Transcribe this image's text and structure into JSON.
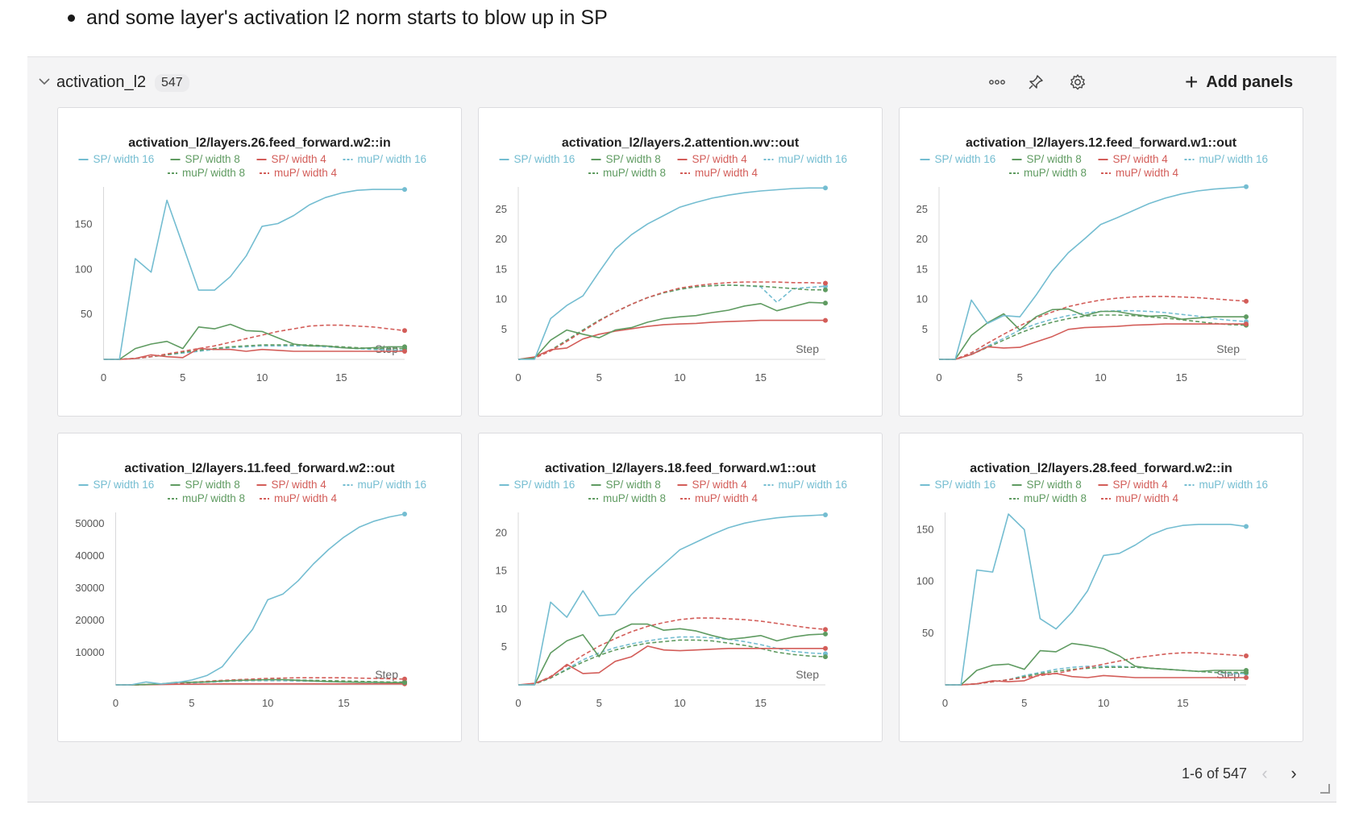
{
  "note": {
    "text": "and some layer's activation l2 norm starts to blow up in SP"
  },
  "section": {
    "title": "activation_l2",
    "count": "547",
    "icons": {
      "more": "more-dots-icon",
      "pin": "pin-icon",
      "settings": "gear-icon",
      "add": "plus-icon"
    },
    "add_panels_label": "Add panels",
    "pagination": {
      "label": "1-6 of 547",
      "prev": "chevron-left-icon",
      "next": "chevron-right-icon"
    }
  },
  "colors": {
    "sp16": "#74bdd1",
    "sp8": "#5f9b61",
    "sp4": "#d35d59",
    "mup16": "#74bdd1",
    "mup8": "#5f9b61",
    "mup4": "#d35d59"
  },
  "legend": [
    {
      "key": "sp16",
      "label": "SP/ width 16",
      "dash": false
    },
    {
      "key": "sp8",
      "label": "SP/ width 8",
      "dash": false
    },
    {
      "key": "sp4",
      "label": "SP/ width 4",
      "dash": false
    },
    {
      "key": "mup16",
      "label": "muP/ width 16",
      "dash": true
    },
    {
      "key": "mup8",
      "label": "muP/ width 8",
      "dash": true
    },
    {
      "key": "mup4",
      "label": "muP/ width 4",
      "dash": true
    }
  ],
  "chart_data": [
    {
      "type": "line",
      "title": "activation_l2/layers.26.feed_forward.w2::in",
      "xlabel": "Step",
      "xlim": [
        0,
        19
      ],
      "xticks": [
        0,
        5,
        10,
        15
      ],
      "ylim": [
        0,
        190
      ],
      "yticks": [
        50,
        100,
        150
      ],
      "series": [
        {
          "key": "sp16",
          "name": "SP/ width 16",
          "values": [
            0,
            0,
            112,
            97,
            177,
            127,
            77,
            77,
            92,
            115,
            148,
            151,
            160,
            172,
            180,
            185,
            188,
            189,
            189,
            189
          ]
        },
        {
          "key": "sp8",
          "name": "SP/ width 8",
          "values": [
            0,
            0,
            12,
            17,
            20,
            12,
            36,
            34,
            39,
            32,
            31,
            24,
            17,
            15,
            15,
            13,
            12,
            13,
            14,
            14
          ]
        },
        {
          "key": "sp4",
          "name": "SP/ width 4",
          "values": [
            0,
            0,
            1,
            5,
            3,
            2,
            12,
            11,
            11,
            9,
            11,
            10,
            9,
            9,
            9,
            9,
            9,
            9,
            9,
            9
          ]
        },
        {
          "key": "mup16",
          "name": "muP/ width 16",
          "values": [
            0,
            0,
            1,
            3,
            5,
            7,
            9,
            11,
            13,
            14,
            15,
            15,
            15,
            15,
            14,
            13,
            12,
            11,
            10,
            10
          ]
        },
        {
          "key": "mup8",
          "name": "muP/ width 8",
          "values": [
            0,
            0,
            1,
            3,
            5,
            8,
            10,
            12,
            14,
            15,
            16,
            16,
            16,
            16,
            15,
            14,
            13,
            12,
            12,
            12
          ]
        },
        {
          "key": "mup4",
          "name": "muP/ width 4",
          "values": [
            0,
            0,
            1,
            3,
            6,
            9,
            12,
            15,
            19,
            23,
            27,
            31,
            34,
            37,
            38,
            38,
            37,
            36,
            34,
            32
          ]
        }
      ]
    },
    {
      "type": "line",
      "title": "activation_l2/layers.2.attention.wv::out",
      "xlabel": "Step",
      "xlim": [
        0,
        19
      ],
      "xticks": [
        0,
        5,
        10,
        15
      ],
      "ylim": [
        0,
        28.5
      ],
      "yticks": [
        5,
        10,
        15,
        20,
        25
      ],
      "series": [
        {
          "key": "sp16",
          "name": "SP/ width 16",
          "values": [
            0,
            0,
            6.8,
            9,
            10.6,
            14.6,
            18.4,
            20.8,
            22.6,
            24,
            25.4,
            26.2,
            26.9,
            27.4,
            27.8,
            28.1,
            28.3,
            28.5,
            28.6,
            28.6
          ]
        },
        {
          "key": "sp8",
          "name": "SP/ width 8",
          "values": [
            0,
            0.2,
            3.2,
            4.9,
            4.2,
            3.6,
            4.9,
            5.3,
            6.2,
            6.8,
            7.1,
            7.3,
            7.8,
            8.2,
            8.9,
            9.3,
            8.1,
            8.8,
            9.5,
            9.4
          ]
        },
        {
          "key": "sp4",
          "name": "SP/ width 4",
          "values": [
            0,
            0.4,
            1.6,
            1.9,
            3.4,
            4.2,
            4.7,
            5.1,
            5.5,
            5.8,
            5.9,
            6,
            6.2,
            6.3,
            6.4,
            6.5,
            6.5,
            6.5,
            6.5,
            6.5
          ]
        },
        {
          "key": "mup16",
          "name": "muP/ width 16",
          "values": [
            0,
            0.2,
            1.5,
            3.2,
            4.9,
            6.5,
            7.9,
            9.2,
            10.3,
            11.1,
            11.7,
            12.1,
            12.3,
            12.4,
            12.3,
            12.1,
            9.5,
            11.8,
            12,
            12.2
          ]
        },
        {
          "key": "mup8",
          "name": "muP/ width 8",
          "values": [
            0,
            0.2,
            1.5,
            3.2,
            4.9,
            6.5,
            7.9,
            9.2,
            10.3,
            11.1,
            11.7,
            12.1,
            12.3,
            12.4,
            12.3,
            12.2,
            12,
            11.8,
            11.6,
            11.6
          ]
        },
        {
          "key": "mup4",
          "name": "muP/ width 4",
          "values": [
            0,
            0.2,
            1.4,
            3,
            4.7,
            6.4,
            7.9,
            9.2,
            10.3,
            11.2,
            11.9,
            12.3,
            12.6,
            12.8,
            12.9,
            12.9,
            12.9,
            12.8,
            12.8,
            12.7
          ]
        }
      ]
    },
    {
      "type": "line",
      "title": "activation_l2/layers.12.feed_forward.w1::out",
      "xlabel": "Step",
      "xlim": [
        0,
        19
      ],
      "xticks": [
        0,
        5,
        10,
        15
      ],
      "ylim": [
        0,
        28.5
      ],
      "yticks": [
        5,
        10,
        15,
        20,
        25
      ],
      "series": [
        {
          "key": "sp16",
          "name": "SP/ width 16",
          "values": [
            0,
            0,
            9.9,
            6,
            7.3,
            7.1,
            10.7,
            14.7,
            17.8,
            20.1,
            22.5,
            23.6,
            24.8,
            26,
            26.9,
            27.6,
            28.1,
            28.4,
            28.6,
            28.8
          ]
        },
        {
          "key": "sp8",
          "name": "SP/ width 8",
          "values": [
            0,
            0,
            4,
            6.1,
            7.6,
            4.9,
            7.1,
            8.3,
            8.4,
            7.3,
            8,
            8,
            7.5,
            7.2,
            7.3,
            6.7,
            6.9,
            7.1,
            7.1,
            7.1
          ]
        },
        {
          "key": "sp4",
          "name": "SP/ width 4",
          "values": [
            0,
            0,
            0.8,
            2.1,
            1.9,
            2,
            2.9,
            3.8,
            5,
            5.3,
            5.4,
            5.5,
            5.7,
            5.8,
            5.9,
            5.9,
            5.9,
            5.9,
            5.9,
            5.9
          ]
        },
        {
          "key": "mup16",
          "name": "muP/ width 16",
          "values": [
            0,
            0,
            0.9,
            2.2,
            3.5,
            4.9,
            5.9,
            6.7,
            7.3,
            7.7,
            8,
            8.1,
            8.1,
            8,
            7.8,
            7.5,
            7.2,
            6.8,
            6.5,
            6.3
          ]
        },
        {
          "key": "mup8",
          "name": "muP/ width 8",
          "values": [
            0,
            0,
            0.8,
            2,
            3.2,
            4.4,
            5.4,
            6.2,
            6.8,
            7.2,
            7.4,
            7.4,
            7.3,
            7.1,
            6.9,
            6.6,
            6.3,
            6,
            5.8,
            5.7
          ]
        },
        {
          "key": "mup4",
          "name": "muP/ width 4",
          "values": [
            0,
            0,
            1.1,
            2.7,
            4.2,
            5.6,
            6.9,
            7.9,
            8.8,
            9.4,
            9.9,
            10.2,
            10.4,
            10.5,
            10.5,
            10.4,
            10.3,
            10.1,
            9.9,
            9.7
          ]
        }
      ]
    },
    {
      "type": "line",
      "title": "activation_l2/layers.11.feed_forward.w2::out",
      "xlabel": "Step",
      "xlim": [
        0,
        19
      ],
      "xticks": [
        0,
        5,
        10,
        15
      ],
      "ylim": [
        0,
        53000
      ],
      "yticks": [
        10000,
        20000,
        30000,
        40000,
        50000
      ],
      "series": [
        {
          "key": "sp16",
          "name": "SP/ width 16",
          "values": [
            0,
            0,
            900,
            300,
            700,
            1500,
            2900,
            5600,
            11500,
            17200,
            26400,
            28200,
            32300,
            37500,
            42000,
            45800,
            48900,
            50800,
            52100,
            53000
          ]
        },
        {
          "key": "sp8",
          "name": "SP/ width 8",
          "values": [
            0,
            0,
            100,
            300,
            800,
            800,
            900,
            1200,
            1400,
            1500,
            1600,
            1600,
            1400,
            1200,
            1000,
            900,
            800,
            800,
            700,
            700
          ]
        },
        {
          "key": "sp4",
          "name": "SP/ width 4",
          "values": [
            0,
            0,
            50,
            100,
            200,
            200,
            250,
            300,
            300,
            300,
            300,
            300,
            300,
            300,
            300,
            300,
            300,
            300,
            300,
            300
          ]
        },
        {
          "key": "mup16",
          "name": "muP/ width 16",
          "values": [
            0,
            0,
            50,
            200,
            400,
            600,
            800,
            1000,
            1200,
            1300,
            1300,
            1300,
            1200,
            1100,
            1000,
            900,
            800,
            700,
            700,
            600
          ]
        },
        {
          "key": "mup8",
          "name": "muP/ width 8",
          "values": [
            0,
            0,
            100,
            300,
            500,
            800,
            1000,
            1200,
            1400,
            1500,
            1600,
            1600,
            1500,
            1400,
            1300,
            1200,
            1100,
            1000,
            900,
            900
          ]
        },
        {
          "key": "mup4",
          "name": "muP/ width 4",
          "values": [
            0,
            0,
            100,
            300,
            500,
            800,
            1100,
            1400,
            1600,
            1800,
            2000,
            2100,
            2200,
            2200,
            2200,
            2200,
            2100,
            2000,
            1900,
            1800
          ]
        }
      ]
    },
    {
      "type": "line",
      "title": "activation_l2/layers.18.feed_forward.w1::out",
      "xlabel": "Step",
      "xlim": [
        0,
        19
      ],
      "xticks": [
        0,
        5,
        10,
        15
      ],
      "ylim": [
        0,
        22.5
      ],
      "yticks": [
        5,
        10,
        15,
        20
      ],
      "series": [
        {
          "key": "sp16",
          "name": "SP/ width 16",
          "values": [
            0,
            0,
            10.9,
            8.9,
            12.4,
            9.1,
            9.3,
            11.9,
            14,
            15.9,
            17.8,
            18.8,
            19.8,
            20.7,
            21.3,
            21.7,
            22,
            22.2,
            22.3,
            22.4
          ]
        },
        {
          "key": "sp8",
          "name": "SP/ width 8",
          "values": [
            0,
            0,
            4.2,
            5.8,
            6.6,
            3.7,
            7,
            8,
            8,
            7.2,
            7.4,
            7.1,
            6.5,
            6,
            6.2,
            6.5,
            5.8,
            6.3,
            6.6,
            6.7
          ]
        },
        {
          "key": "sp4",
          "name": "SP/ width 4",
          "values": [
            0,
            0.2,
            1,
            2.7,
            1.5,
            1.6,
            3.1,
            3.7,
            5.1,
            4.6,
            4.5,
            4.6,
            4.7,
            4.8,
            4.8,
            4.8,
            4.8,
            4.8,
            4.8,
            4.8
          ]
        },
        {
          "key": "mup16",
          "name": "muP/ width 16",
          "values": [
            0,
            0.1,
            0.9,
            2.1,
            3.3,
            4.2,
            4.9,
            5.4,
            5.8,
            6.1,
            6.3,
            6.3,
            6.2,
            6,
            5.7,
            5.3,
            4.8,
            4.4,
            4.2,
            4.1
          ]
        },
        {
          "key": "mup8",
          "name": "muP/ width 8",
          "values": [
            0,
            0.1,
            0.9,
            2,
            3,
            3.9,
            4.6,
            5.1,
            5.5,
            5.7,
            5.9,
            5.9,
            5.8,
            5.5,
            5.2,
            4.8,
            4.3,
            4,
            3.8,
            3.7
          ]
        },
        {
          "key": "mup4",
          "name": "muP/ width 4",
          "values": [
            0,
            0.1,
            1.1,
            2.5,
            3.9,
            5.1,
            6.1,
            7,
            7.7,
            8.2,
            8.6,
            8.8,
            8.8,
            8.7,
            8.6,
            8.4,
            8.1,
            7.8,
            7.5,
            7.3
          ]
        }
      ]
    },
    {
      "type": "line",
      "title": "activation_l2/layers.28.feed_forward.w2::in",
      "xlabel": "Step",
      "xlim": [
        0,
        19
      ],
      "xticks": [
        0,
        5,
        10,
        15
      ],
      "ylim": [
        0,
        165
      ],
      "yticks": [
        50,
        100,
        150
      ],
      "series": [
        {
          "key": "sp16",
          "name": "SP/ width 16",
          "values": [
            0,
            0,
            111,
            109,
            165,
            150,
            64,
            54,
            70,
            91,
            125,
            127,
            135,
            145,
            151,
            154,
            155,
            155,
            155,
            153
          ]
        },
        {
          "key": "sp8",
          "name": "SP/ width 8",
          "values": [
            0,
            0,
            14,
            19,
            20,
            15,
            33,
            32,
            40,
            38,
            35,
            28,
            18,
            16,
            15,
            14,
            13,
            14,
            14,
            14
          ]
        },
        {
          "key": "sp4",
          "name": "SP/ width 4",
          "values": [
            0,
            0,
            1,
            4,
            3,
            4,
            10,
            11,
            8,
            7,
            9,
            8,
            7,
            7,
            7,
            7,
            7,
            7,
            7,
            7
          ]
        },
        {
          "key": "mup16",
          "name": "muP/ width 16",
          "values": [
            0,
            0,
            1,
            3,
            5,
            9,
            12,
            15,
            17,
            18,
            18,
            18,
            17,
            16,
            15,
            14,
            13,
            12,
            11,
            11
          ]
        },
        {
          "key": "mup8",
          "name": "muP/ width 8",
          "values": [
            0,
            0,
            1,
            3,
            5,
            8,
            11,
            13,
            15,
            16,
            17,
            17,
            17,
            16,
            15,
            14,
            13,
            12,
            12,
            12
          ]
        },
        {
          "key": "mup4",
          "name": "muP/ width 4",
          "values": [
            0,
            0,
            1,
            3,
            5,
            7,
            9,
            11,
            14,
            17,
            20,
            23,
            26,
            28,
            30,
            31,
            31,
            30,
            29,
            28
          ]
        }
      ]
    }
  ]
}
